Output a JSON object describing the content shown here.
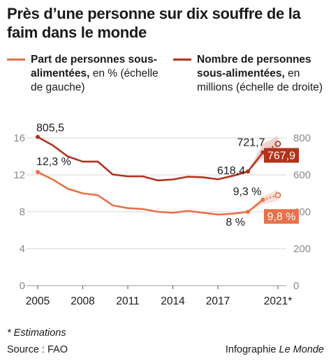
{
  "title": "Près d’une personne sur dix souffre de la faim dans le monde",
  "legend": {
    "left": {
      "bold": "Part de personnes sous-alimentées,",
      "normal": " en % (échelle de gauche)",
      "color": "#e8704a"
    },
    "right": {
      "bold": "Nombre de personnes sous-alimentées,",
      "normal": " en millions (échelle de droite)",
      "color": "#b2321c"
    }
  },
  "footnote": "* Estimations",
  "source": "Source : FAO",
  "credit": {
    "prefix": "Infographie ",
    "brand": "Le Monde"
  },
  "chart_data": {
    "type": "line",
    "x": [
      2005,
      2006,
      2007,
      2008,
      2009,
      2010,
      2011,
      2012,
      2013,
      2014,
      2015,
      2016,
      2017,
      2018,
      2019,
      2020,
      2021
    ],
    "x_ticks": [
      "2005",
      "2008",
      "2011",
      "2014",
      "2017",
      "2021*"
    ],
    "x_tick_values": [
      2005,
      2008,
      2011,
      2014,
      2017,
      2021
    ],
    "left_axis": {
      "ylim": [
        0,
        16
      ],
      "ticks": [
        "0",
        "4",
        "8",
        "12",
        "16"
      ],
      "tick_values": [
        0,
        4,
        8,
        12,
        16
      ]
    },
    "right_axis": {
      "ylim": [
        0,
        800
      ],
      "ticks": [
        "0",
        "200",
        "400",
        "600",
        "800"
      ],
      "tick_values": [
        0,
        200,
        400,
        600,
        800
      ]
    },
    "series": [
      {
        "name": "Part de personnes sous-alimentées",
        "axis": "left",
        "color": "#e8704a",
        "values": [
          12.3,
          11.5,
          10.5,
          10.0,
          9.8,
          8.7,
          8.4,
          8.3,
          8.0,
          7.9,
          8.1,
          7.9,
          7.7,
          7.8,
          8.0,
          9.3,
          9.8
        ],
        "estimate_from": 2020,
        "band": [
          [
            2019,
            8.0,
            8.0
          ],
          [
            2020,
            8.8,
            9.7
          ],
          [
            2021,
            9.2,
            10.4
          ]
        ],
        "labels": [
          {
            "x": 2005,
            "text": "12,3 %"
          },
          {
            "x": 2019,
            "text": "8 %"
          },
          {
            "x": 2020,
            "text": "9,3 %"
          },
          {
            "x": 2021,
            "text": "9,8 %",
            "boxed": true
          }
        ]
      },
      {
        "name": "Nombre de personnes sous-alimentées",
        "axis": "right",
        "color": "#b2321c",
        "values": [
          805.5,
          760,
          700,
          672,
          672,
          602,
          592,
          592,
          570,
          575,
          590,
          587,
          576,
          595,
          618.4,
          721.7,
          767.9
        ],
        "estimate_from": 2020,
        "band": [
          [
            2019,
            618.4,
            618.4
          ],
          [
            2020,
            690,
            768
          ],
          [
            2021,
            710,
            810
          ]
        ],
        "labels": [
          {
            "x": 2005,
            "text": "805,5"
          },
          {
            "x": 2019,
            "text": "618,4"
          },
          {
            "x": 2020,
            "text": "721,7"
          },
          {
            "x": 2021,
            "text": "767,9",
            "boxed": true
          }
        ]
      }
    ]
  }
}
